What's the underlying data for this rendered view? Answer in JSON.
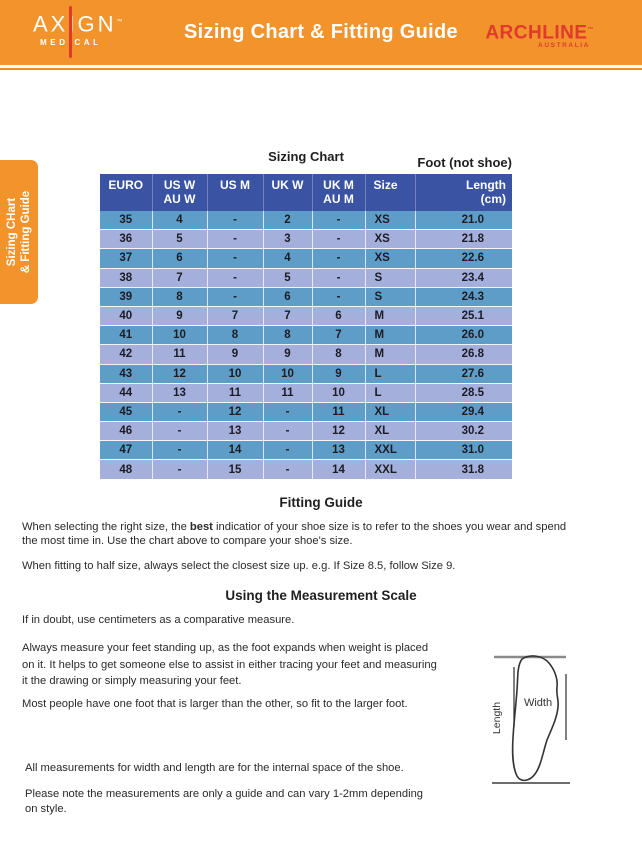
{
  "header": {
    "brand_left": {
      "name": "AXIGN",
      "tm": "™",
      "sub": "MEDICAL"
    },
    "title": "Sizing Chart & Fitting Guide",
    "brand_right": {
      "name": "ARCHLINE",
      "tm": "™",
      "sub": "AUSTRALIA"
    }
  },
  "side_tab": {
    "line1": "Sizing CHart",
    "line2": "& Fitting Guide"
  },
  "sizing_chart": {
    "title": "Sizing Chart",
    "foot_note": "Foot (not shoe)",
    "columns": [
      {
        "l1": "EURO",
        "l2": ""
      },
      {
        "l1": "US W",
        "l2": "AU W"
      },
      {
        "l1": "US M",
        "l2": ""
      },
      {
        "l1": "UK W",
        "l2": ""
      },
      {
        "l1": "UK M",
        "l2": "AU M"
      },
      {
        "l1": "Size",
        "l2": ""
      },
      {
        "l1": "Length",
        "l2": "(cm)"
      }
    ],
    "rows": [
      [
        "35",
        "4",
        "-",
        "2",
        "-",
        "XS",
        "21.0"
      ],
      [
        "36",
        "5",
        "-",
        "3",
        "-",
        "XS",
        "21.8"
      ],
      [
        "37",
        "6",
        "-",
        "4",
        "-",
        "XS",
        "22.6"
      ],
      [
        "38",
        "7",
        "-",
        "5",
        "-",
        "S",
        "23.4"
      ],
      [
        "39",
        "8",
        "-",
        "6",
        "-",
        "S",
        "24.3"
      ],
      [
        "40",
        "9",
        "7",
        "7",
        "6",
        "M",
        "25.1"
      ],
      [
        "41",
        "10",
        "8",
        "8",
        "7",
        "M",
        "26.0"
      ],
      [
        "42",
        "11",
        "9",
        "9",
        "8",
        "M",
        "26.8"
      ],
      [
        "43",
        "12",
        "10",
        "10",
        "9",
        "L",
        "27.6"
      ],
      [
        "44",
        "13",
        "11",
        "11",
        "10",
        "L",
        "28.5"
      ],
      [
        "45",
        "-",
        "12",
        "-",
        "11",
        "XL",
        "29.4"
      ],
      [
        "46",
        "-",
        "13",
        "-",
        "12",
        "XL",
        "30.2"
      ],
      [
        "47",
        "-",
        "14",
        "-",
        "13",
        "XXL",
        "31.0"
      ],
      [
        "48",
        "-",
        "15",
        "-",
        "14",
        "XXL",
        "31.8"
      ]
    ]
  },
  "fitting_guide": {
    "heading": "Fitting Guide",
    "p1_before": "When selecting the right size, the ",
    "p1_bold": "best",
    "p1_after": " indicatior of your shoe size is to refer to the shoes you wear and spend\nthe most time in. Use the chart above to compare your shoe's size.",
    "p2": "When fitting to half size, always select the closest size up. e.g. If Size 8.5, follow Size 9."
  },
  "measurement_scale": {
    "heading": "Using the Measurement Scale",
    "p1": "If in doubt, use centimeters as a comparative measure.",
    "p2": "Always measure your feet standing up, as the foot expands when weight is placed\non it. It helps to get someone else to assist in either tracing your feet and measuring\nit the drawing or simply measuring your feet.",
    "p3": "Most people have one foot that is larger than the other, so fit to the larger foot.",
    "p4": "All measurements for width and length are for the internal space of the shoe.",
    "p5": "Please note the measurements are only a guide and can vary 1-2mm depending\non style.",
    "diagram": {
      "width_label": "Width",
      "length_label": "Length"
    }
  },
  "colors": {
    "orange": "#F2932C",
    "rule_orange": "#EE8E20",
    "brand_red": "#DF3A2C",
    "table_header_blue": "#3A53A3",
    "row_dark": "#5F9DC9",
    "row_light": "#A4AFDC",
    "text_dark": "#231F20"
  }
}
